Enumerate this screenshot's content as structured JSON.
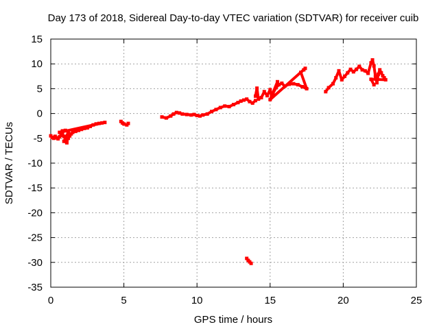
{
  "chart_data": {
    "type": "scatter",
    "title": "Day 173 of 2018, Sidereal Day-to-day VTEC variation (SDTVAR) for receiver cuib",
    "xlabel": "GPS time / hours",
    "ylabel": "SDTVAR / TECUs",
    "xlim": [
      0,
      25
    ],
    "ylim": [
      -35,
      15
    ],
    "xticks": [
      "0",
      "5",
      "10",
      "15",
      "20",
      "25"
    ],
    "yticks": [
      "15",
      "10",
      "5",
      "0",
      "-5",
      "-10",
      "-15",
      "-20",
      "-25",
      "-30",
      "-35"
    ],
    "grid": true,
    "series_color": "#ff0000",
    "series": [
      {
        "name": "SDTVAR",
        "points": [
          [
            0.0,
            -4.5
          ],
          [
            0.1,
            -4.8
          ],
          [
            0.2,
            -5.0
          ],
          [
            0.3,
            -4.6
          ],
          [
            0.4,
            -4.9
          ],
          [
            0.5,
            -5.1
          ],
          [
            0.6,
            -4.7
          ],
          [
            0.7,
            -4.4
          ],
          [
            0.8,
            -4.2
          ],
          [
            0.9,
            -4.6
          ],
          [
            1.0,
            -5.2
          ],
          [
            1.1,
            -5.5
          ],
          [
            1.2,
            -5.0
          ],
          [
            1.3,
            -4.5
          ],
          [
            1.4,
            -4.1
          ],
          [
            1.5,
            -3.8
          ],
          [
            1.7,
            -3.6
          ],
          [
            1.9,
            -3.4
          ],
          [
            2.1,
            -3.2
          ],
          [
            2.3,
            -3.0
          ],
          [
            2.5,
            -2.9
          ],
          [
            2.7,
            -2.6
          ],
          [
            2.9,
            -2.3
          ],
          [
            3.1,
            -2.1
          ],
          [
            3.3,
            -2.0
          ],
          [
            3.5,
            -1.9
          ],
          [
            3.7,
            -1.8
          ],
          [
            0.6,
            -3.8
          ],
          [
            0.8,
            -3.5
          ],
          [
            1.0,
            -3.4
          ],
          [
            1.2,
            -3.8
          ],
          [
            0.9,
            -5.6
          ],
          [
            1.1,
            -5.9
          ]
        ]
      },
      {
        "name": "SDTVAR",
        "points": [
          [
            4.8,
            -1.6
          ],
          [
            4.9,
            -1.9
          ],
          [
            5.0,
            -2.1
          ],
          [
            5.2,
            -2.3
          ],
          [
            5.3,
            -2.0
          ]
        ]
      },
      {
        "name": "SDTVAR",
        "points": [
          [
            7.6,
            -0.7
          ],
          [
            7.9,
            -0.9
          ],
          [
            8.2,
            -0.5
          ],
          [
            8.4,
            -0.1
          ],
          [
            8.6,
            0.2
          ],
          [
            8.8,
            0.1
          ],
          [
            9.0,
            -0.1
          ],
          [
            9.3,
            -0.2
          ],
          [
            9.6,
            -0.3
          ],
          [
            9.8,
            -0.2
          ],
          [
            10.0,
            -0.4
          ],
          [
            10.2,
            -0.5
          ],
          [
            10.4,
            -0.3
          ],
          [
            10.7,
            -0.1
          ],
          [
            11.0,
            0.4
          ],
          [
            11.3,
            0.8
          ],
          [
            11.6,
            1.2
          ],
          [
            11.9,
            1.5
          ],
          [
            12.2,
            1.4
          ],
          [
            12.5,
            1.8
          ],
          [
            12.8,
            2.2
          ],
          [
            13.0,
            2.5
          ],
          [
            13.2,
            2.7
          ],
          [
            13.4,
            2.9
          ],
          [
            13.6,
            2.4
          ],
          [
            13.8,
            2.1
          ],
          [
            14.0,
            2.6
          ]
        ]
      },
      {
        "name": "SDTVAR",
        "points": [
          [
            13.4,
            -29.2
          ],
          [
            13.5,
            -29.6
          ],
          [
            13.6,
            -29.9
          ],
          [
            13.7,
            -30.2
          ]
        ]
      },
      {
        "name": "SDTVAR",
        "points": [
          [
            14.0,
            3.5
          ],
          [
            14.1,
            5.1
          ],
          [
            14.2,
            2.9
          ],
          [
            14.4,
            3.2
          ],
          [
            14.6,
            4.4
          ],
          [
            14.8,
            3.6
          ],
          [
            15.0,
            4.8
          ],
          [
            15.1,
            3.5
          ],
          [
            15.2,
            4.1
          ],
          [
            15.4,
            5.2
          ],
          [
            15.6,
            5.8
          ],
          [
            15.8,
            6.1
          ],
          [
            16.0,
            5.5
          ],
          [
            16.3,
            5.9
          ],
          [
            16.6,
            6.0
          ],
          [
            16.9,
            5.8
          ],
          [
            17.2,
            5.4
          ],
          [
            17.5,
            5.0
          ],
          [
            17.1,
            8.3
          ],
          [
            17.3,
            8.8
          ],
          [
            17.4,
            9.1
          ],
          [
            15.0,
            2.8
          ],
          [
            15.5,
            6.4
          ]
        ]
      },
      {
        "name": "SDTVAR",
        "points": [
          [
            18.8,
            4.4
          ],
          [
            19.0,
            5.2
          ],
          [
            19.3,
            6.0
          ],
          [
            19.5,
            7.2
          ],
          [
            19.7,
            8.6
          ],
          [
            19.9,
            6.8
          ],
          [
            20.1,
            7.5
          ],
          [
            20.3,
            8.2
          ],
          [
            20.5,
            8.9
          ],
          [
            20.7,
            8.4
          ],
          [
            20.9,
            8.9
          ],
          [
            21.1,
            9.5
          ],
          [
            21.3,
            8.8
          ],
          [
            21.5,
            8.6
          ],
          [
            21.7,
            8.1
          ],
          [
            21.9,
            10.2
          ],
          [
            22.0,
            10.8
          ],
          [
            22.1,
            9.6
          ],
          [
            22.2,
            7.5
          ],
          [
            22.3,
            6.2
          ],
          [
            22.4,
            7.9
          ],
          [
            22.5,
            8.8
          ],
          [
            22.6,
            8.2
          ],
          [
            22.7,
            7.6
          ],
          [
            22.8,
            7.2
          ],
          [
            22.9,
            6.8
          ],
          [
            21.9,
            6.9
          ],
          [
            22.1,
            5.8
          ]
        ]
      }
    ]
  }
}
